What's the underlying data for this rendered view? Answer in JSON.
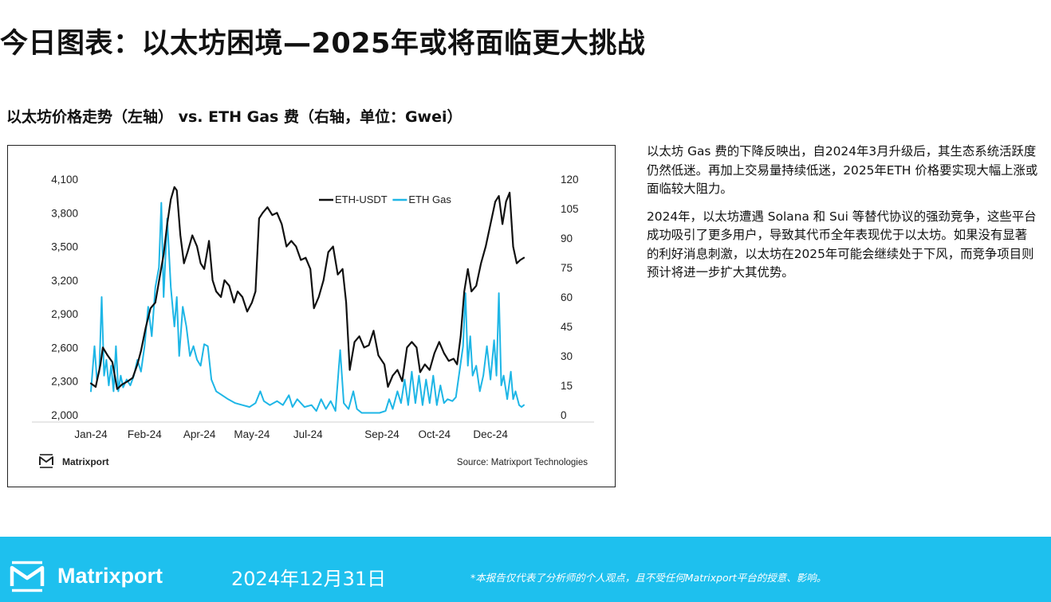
{
  "page": {
    "title": "今日图表：以太坊困境—2025年或将面临更大挑战",
    "chart_heading": "以太坊价格走势（左轴） vs. ETH Gas 费（右轴，单位：Gwei）",
    "paragraphs": [
      "以太坊 Gas 费的下降反映出，自2024年3月升级后，其生态系统活跃度仍然低迷。再加上交易量持续低迷，2025年ETH 价格要实现大幅上涨或面临较大阻力。",
      "2024年，以太坊遭遇 Solana 和 Sui 等替代协议的强劲竞争，这些平台成功吸引了更多用户，导致其代币全年表现优于以太坊。如果没有显著的利好消息刺激，以太坊在2025年可能会继续处于下风，而竞争项目则预计将进一步扩大其优势。"
    ]
  },
  "chart_caption": {
    "brand": "Matrixport",
    "source": "Source: Matrixport Technologies"
  },
  "footer": {
    "brand": "Matrixport",
    "date": "2024年12月31日",
    "disclaimer": "*本报告仅代表了分析师的个人观点，且不受任何Matrixport平台的授意、影响。",
    "background_color": "#1ec0ee"
  },
  "chart_data": {
    "type": "line",
    "x_ticks": [
      "Jan-24",
      "Feb-24",
      "Apr-24",
      "May-24",
      "Jul-24",
      "Sep-24",
      "Oct-24",
      "Dec-24"
    ],
    "x_tick_dates": [
      "2024-01-01",
      "2024-02-15",
      "2024-04-01",
      "2024-05-15",
      "2024-07-01",
      "2024-09-01",
      "2024-10-15",
      "2024-12-01"
    ],
    "x_range": [
      "2024-01-01",
      "2024-12-31"
    ],
    "y_left": {
      "ticks": [
        2000,
        2300,
        2600,
        2900,
        3200,
        3500,
        3800,
        4100
      ],
      "tick_labels": [
        "2,000",
        "2,300",
        "2,600",
        "2,900",
        "3,200",
        "3,500",
        "3,800",
        "4,100"
      ],
      "range": [
        2000,
        4100
      ]
    },
    "y_right": {
      "ticks": [
        0,
        15,
        30,
        45,
        60,
        75,
        90,
        105,
        120
      ],
      "tick_labels": [
        "0",
        "15",
        "30",
        "45",
        "60",
        "75",
        "90",
        "105",
        "120"
      ],
      "range": [
        0,
        120
      ]
    },
    "legend_position": "top-right",
    "grid": false,
    "series": [
      {
        "name": "ETH-USDT",
        "axis": "left",
        "color": "#111111",
        "points": [
          [
            "2024-01-01",
            2280
          ],
          [
            "2024-01-05",
            2250
          ],
          [
            "2024-01-09",
            2450
          ],
          [
            "2024-01-11",
            2600
          ],
          [
            "2024-01-15",
            2530
          ],
          [
            "2024-01-19",
            2470
          ],
          [
            "2024-01-23",
            2230
          ],
          [
            "2024-01-27",
            2270
          ],
          [
            "2024-02-01",
            2300
          ],
          [
            "2024-02-05",
            2330
          ],
          [
            "2024-02-09",
            2450
          ],
          [
            "2024-02-12",
            2570
          ],
          [
            "2024-02-16",
            2780
          ],
          [
            "2024-02-20",
            2950
          ],
          [
            "2024-02-24",
            3000
          ],
          [
            "2024-02-28",
            3250
          ],
          [
            "2024-03-02",
            3430
          ],
          [
            "2024-03-05",
            3700
          ],
          [
            "2024-03-08",
            3920
          ],
          [
            "2024-03-11",
            4030
          ],
          [
            "2024-03-13",
            4000
          ],
          [
            "2024-03-16",
            3600
          ],
          [
            "2024-03-19",
            3350
          ],
          [
            "2024-03-22",
            3450
          ],
          [
            "2024-03-26",
            3600
          ],
          [
            "2024-03-30",
            3500
          ],
          [
            "2024-04-02",
            3350
          ],
          [
            "2024-04-05",
            3300
          ],
          [
            "2024-04-09",
            3550
          ],
          [
            "2024-04-12",
            3200
          ],
          [
            "2024-04-15",
            3100
          ],
          [
            "2024-04-19",
            3050
          ],
          [
            "2024-04-22",
            3200
          ],
          [
            "2024-04-26",
            3150
          ],
          [
            "2024-04-30",
            3000
          ],
          [
            "2024-05-03",
            3100
          ],
          [
            "2024-05-07",
            3050
          ],
          [
            "2024-05-11",
            2920
          ],
          [
            "2024-05-15",
            3000
          ],
          [
            "2024-05-18",
            3100
          ],
          [
            "2024-05-21",
            3750
          ],
          [
            "2024-05-24",
            3800
          ],
          [
            "2024-05-28",
            3850
          ],
          [
            "2024-06-01",
            3780
          ],
          [
            "2024-06-05",
            3800
          ],
          [
            "2024-06-09",
            3700
          ],
          [
            "2024-06-13",
            3500
          ],
          [
            "2024-06-17",
            3550
          ],
          [
            "2024-06-21",
            3500
          ],
          [
            "2024-06-25",
            3380
          ],
          [
            "2024-06-29",
            3400
          ],
          [
            "2024-07-03",
            3300
          ],
          [
            "2024-07-06",
            2950
          ],
          [
            "2024-07-10",
            3050
          ],
          [
            "2024-07-14",
            3200
          ],
          [
            "2024-07-18",
            3450
          ],
          [
            "2024-07-22",
            3500
          ],
          [
            "2024-07-26",
            3250
          ],
          [
            "2024-07-30",
            3300
          ],
          [
            "2024-08-02",
            3000
          ],
          [
            "2024-08-05",
            2400
          ],
          [
            "2024-08-09",
            2650
          ],
          [
            "2024-08-13",
            2700
          ],
          [
            "2024-08-17",
            2600
          ],
          [
            "2024-08-21",
            2620
          ],
          [
            "2024-08-25",
            2750
          ],
          [
            "2024-08-29",
            2530
          ],
          [
            "2024-09-03",
            2450
          ],
          [
            "2024-09-06",
            2250
          ],
          [
            "2024-09-10",
            2350
          ],
          [
            "2024-09-14",
            2400
          ],
          [
            "2024-09-18",
            2300
          ],
          [
            "2024-09-22",
            2600
          ],
          [
            "2024-09-26",
            2650
          ],
          [
            "2024-09-30",
            2600
          ],
          [
            "2024-10-03",
            2380
          ],
          [
            "2024-10-07",
            2450
          ],
          [
            "2024-10-11",
            2400
          ],
          [
            "2024-10-15",
            2550
          ],
          [
            "2024-10-19",
            2650
          ],
          [
            "2024-10-23",
            2550
          ],
          [
            "2024-10-27",
            2480
          ],
          [
            "2024-10-31",
            2500
          ],
          [
            "2024-11-03",
            2450
          ],
          [
            "2024-11-06",
            2700
          ],
          [
            "2024-11-09",
            3100
          ],
          [
            "2024-11-12",
            3300
          ],
          [
            "2024-11-15",
            3100
          ],
          [
            "2024-11-19",
            3150
          ],
          [
            "2024-11-23",
            3350
          ],
          [
            "2024-11-27",
            3500
          ],
          [
            "2024-12-01",
            3700
          ],
          [
            "2024-12-05",
            3900
          ],
          [
            "2024-12-08",
            3950
          ],
          [
            "2024-12-11",
            3700
          ],
          [
            "2024-12-14",
            3900
          ],
          [
            "2024-12-17",
            3980
          ],
          [
            "2024-12-20",
            3500
          ],
          [
            "2024-12-23",
            3350
          ],
          [
            "2024-12-26",
            3380
          ],
          [
            "2024-12-29",
            3400
          ]
        ]
      },
      {
        "name": "ETH Gas",
        "axis": "right",
        "color": "#1eb6e6",
        "points": [
          [
            "2024-01-01",
            12
          ],
          [
            "2024-01-04",
            35
          ],
          [
            "2024-01-06",
            18
          ],
          [
            "2024-01-08",
            22
          ],
          [
            "2024-01-10",
            60
          ],
          [
            "2024-01-12",
            20
          ],
          [
            "2024-01-14",
            28
          ],
          [
            "2024-01-16",
            15
          ],
          [
            "2024-01-18",
            25
          ],
          [
            "2024-01-20",
            12
          ],
          [
            "2024-01-22",
            35
          ],
          [
            "2024-01-24",
            12
          ],
          [
            "2024-01-26",
            20
          ],
          [
            "2024-01-28",
            14
          ],
          [
            "2024-01-31",
            18
          ],
          [
            "2024-02-03",
            15
          ],
          [
            "2024-02-06",
            20
          ],
          [
            "2024-02-09",
            28
          ],
          [
            "2024-02-12",
            22
          ],
          [
            "2024-02-15",
            35
          ],
          [
            "2024-02-18",
            55
          ],
          [
            "2024-02-21",
            40
          ],
          [
            "2024-02-24",
            65
          ],
          [
            "2024-02-27",
            75
          ],
          [
            "2024-02-29",
            108
          ],
          [
            "2024-03-02",
            60
          ],
          [
            "2024-03-05",
            100
          ],
          [
            "2024-03-08",
            65
          ],
          [
            "2024-03-11",
            45
          ],
          [
            "2024-03-13",
            60
          ],
          [
            "2024-03-15",
            30
          ],
          [
            "2024-03-18",
            55
          ],
          [
            "2024-03-21",
            45
          ],
          [
            "2024-03-24",
            30
          ],
          [
            "2024-03-27",
            35
          ],
          [
            "2024-03-30",
            28
          ],
          [
            "2024-04-02",
            25
          ],
          [
            "2024-04-05",
            36
          ],
          [
            "2024-04-08",
            35
          ],
          [
            "2024-04-11",
            18
          ],
          [
            "2024-04-15",
            12
          ],
          [
            "2024-04-20",
            10
          ],
          [
            "2024-04-25",
            8
          ],
          [
            "2024-05-01",
            6
          ],
          [
            "2024-05-07",
            5
          ],
          [
            "2024-05-13",
            4
          ],
          [
            "2024-05-18",
            6
          ],
          [
            "2024-05-22",
            12
          ],
          [
            "2024-05-25",
            7
          ],
          [
            "2024-05-30",
            5
          ],
          [
            "2024-06-05",
            7
          ],
          [
            "2024-06-10",
            5
          ],
          [
            "2024-06-15",
            10
          ],
          [
            "2024-06-18",
            4
          ],
          [
            "2024-06-22",
            8
          ],
          [
            "2024-06-28",
            4
          ],
          [
            "2024-07-04",
            5
          ],
          [
            "2024-07-08",
            2
          ],
          [
            "2024-07-12",
            8
          ],
          [
            "2024-07-16",
            3
          ],
          [
            "2024-07-20",
            7
          ],
          [
            "2024-07-24",
            2
          ],
          [
            "2024-07-28",
            33
          ],
          [
            "2024-07-31",
            6
          ],
          [
            "2024-08-04",
            3
          ],
          [
            "2024-08-08",
            12
          ],
          [
            "2024-08-11",
            3
          ],
          [
            "2024-08-15",
            1
          ],
          [
            "2024-08-20",
            1
          ],
          [
            "2024-08-25",
            1
          ],
          [
            "2024-08-30",
            1
          ],
          [
            "2024-09-04",
            2
          ],
          [
            "2024-09-07",
            8
          ],
          [
            "2024-09-10",
            3
          ],
          [
            "2024-09-14",
            12
          ],
          [
            "2024-09-17",
            6
          ],
          [
            "2024-09-20",
            18
          ],
          [
            "2024-09-23",
            5
          ],
          [
            "2024-09-26",
            22
          ],
          [
            "2024-09-29",
            6
          ],
          [
            "2024-10-02",
            20
          ],
          [
            "2024-10-05",
            5
          ],
          [
            "2024-10-08",
            18
          ],
          [
            "2024-10-11",
            6
          ],
          [
            "2024-10-14",
            20
          ],
          [
            "2024-10-17",
            5
          ],
          [
            "2024-10-20",
            15
          ],
          [
            "2024-10-23",
            6
          ],
          [
            "2024-10-26",
            8
          ],
          [
            "2024-10-30",
            7
          ],
          [
            "2024-11-02",
            9
          ],
          [
            "2024-11-05",
            22
          ],
          [
            "2024-11-08",
            35
          ],
          [
            "2024-11-10",
            62
          ],
          [
            "2024-11-12",
            25
          ],
          [
            "2024-11-14",
            40
          ],
          [
            "2024-11-16",
            20
          ],
          [
            "2024-11-19",
            25
          ],
          [
            "2024-11-22",
            12
          ],
          [
            "2024-11-25",
            20
          ],
          [
            "2024-11-28",
            35
          ],
          [
            "2024-12-01",
            18
          ],
          [
            "2024-12-04",
            38
          ],
          [
            "2024-12-06",
            20
          ],
          [
            "2024-12-08",
            62
          ],
          [
            "2024-12-10",
            15
          ],
          [
            "2024-12-12",
            20
          ],
          [
            "2024-12-15",
            8
          ],
          [
            "2024-12-18",
            22
          ],
          [
            "2024-12-20",
            8
          ],
          [
            "2024-12-22",
            12
          ],
          [
            "2024-12-25",
            5
          ],
          [
            "2024-12-27",
            4
          ],
          [
            "2024-12-29",
            5
          ]
        ]
      }
    ]
  }
}
